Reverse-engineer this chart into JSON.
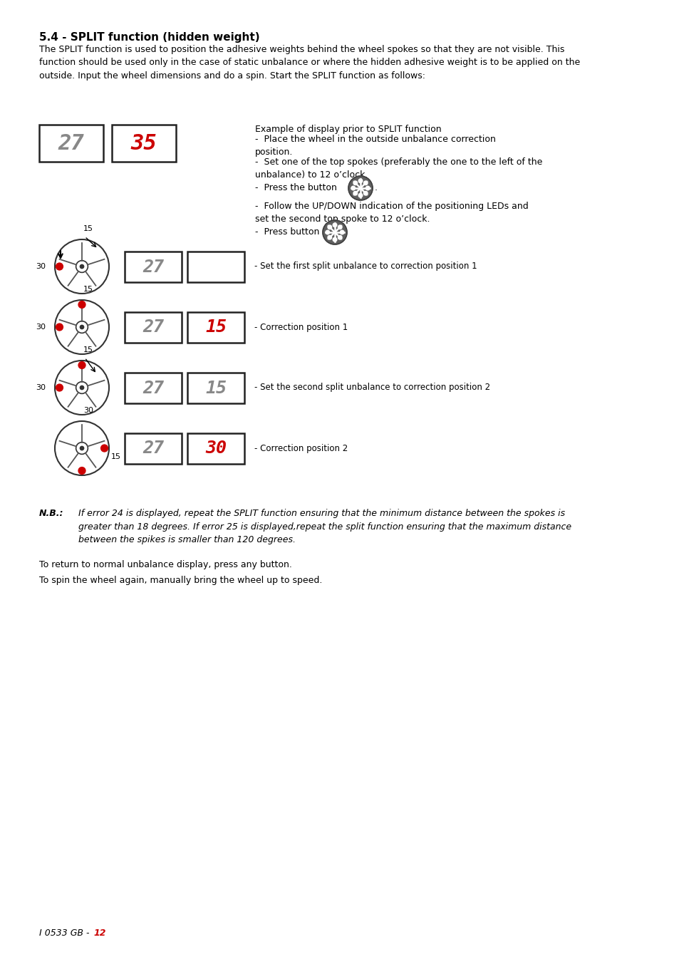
{
  "title": "5.4 - SPLIT function (hidden weight)",
  "body_text": "The SPLIT function is used to position the adhesive weights behind the wheel spokes so that they are not visible. This\nfunction should be used only in the case of static unbalance or where the hidden adhesive weight is to be applied on the\noutside. Input the wheel dimensions and do a spin. Start the SPLIT function as follows:",
  "background_color": "#ffffff",
  "text_color": "#000000",
  "red_color": "#cc0000",
  "gray_color": "#888888",
  "example_text": "Example of display prior to SPLIT function",
  "bullet1": "-  Place the wheel in the outside unbalance correction\nposition.",
  "bullet2": "-  Set one of the top spokes (preferably the one to the left of the\nunbalance) to 12 o’clock.",
  "bullet3": "-  Press the button",
  "bullet4": "-  Follow the UP/DOWN indication of the positioning LEDs and\nset the second top spoke to 12 o’clock.",
  "bullet5": "-  Press button",
  "display_top_val1": "27",
  "display_top_val2": "35",
  "rows": [
    {
      "display1": "27",
      "display1_color": "#888888",
      "display2": "",
      "display2_color": "#888888",
      "label": "- Set the first split unbalance to correction position 1",
      "top_num": "15",
      "left_num": "30",
      "top_arrow": true,
      "top_arrow_right": false,
      "red_dots_angles": [
        180
      ]
    },
    {
      "display1": "27",
      "display1_color": "#888888",
      "display2": "15",
      "display2_color": "#cc0000",
      "label": "- Correction position 1",
      "top_num": "15",
      "left_num": "30",
      "top_arrow": false,
      "top_arrow_right": false,
      "red_dots_angles": [
        90,
        180
      ]
    },
    {
      "display1": "27",
      "display1_color": "#888888",
      "display2": "15",
      "display2_color": "#888888",
      "label": "- Set the second split unbalance to correction position 2",
      "top_num": "15",
      "left_num": "30",
      "top_arrow": true,
      "top_arrow_right": true,
      "red_dots_angles": [
        90,
        180
      ]
    },
    {
      "display1": "27",
      "display1_color": "#888888",
      "display2": "30",
      "display2_color": "#cc0000",
      "label": "- Correction position 2",
      "top_num": "30",
      "left_num": "15",
      "top_arrow": false,
      "top_arrow_right": false,
      "is_last": true,
      "red_dots_angles": [
        0,
        270
      ]
    }
  ],
  "nb_label": "N.B.:",
  "nb_text": "If error 24 is displayed, repeat the SPLIT function ensuring that the minimum distance between the spokes is\ngreater than 18 degrees. If error 25 is displayed,repeat the split function ensuring that the maximum distance\nbetween the spikes is smaller than 120 degrees.",
  "footer_text1": "To return to normal unbalance display, press any button.",
  "footer_text2": "To spin the wheel again, manually bring the wheel up to speed.",
  "page_text": "I 0533 GB - ",
  "page_num": "12"
}
